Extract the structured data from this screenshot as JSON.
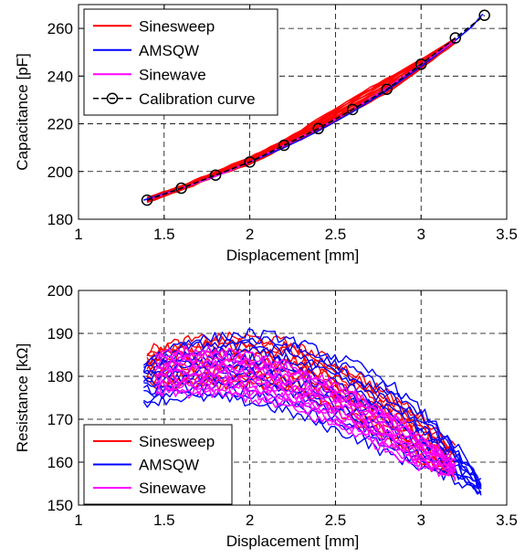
{
  "chart_data": [
    {
      "type": "line",
      "xlabel": "Displacement [mm]",
      "ylabel": "Capacitance [pF]",
      "xlim": [
        1,
        3.5
      ],
      "ylim": [
        180,
        270
      ],
      "xticks": [
        "1",
        "1.5",
        "2",
        "2.5",
        "3",
        "3.5"
      ],
      "yticks": [
        "180",
        "200",
        "220",
        "240",
        "260"
      ],
      "grid": true,
      "legend_position": "top-left",
      "series": [
        {
          "name": "Sinesweep",
          "color": "#ff0000",
          "style": "band",
          "x": [
            1.4,
            1.6,
            1.8,
            2.0,
            2.2,
            2.4,
            2.6,
            2.8,
            3.0,
            3.2
          ],
          "y_low": [
            187,
            192,
            198,
            203,
            210,
            217,
            225,
            233,
            243,
            254
          ],
          "y_high": [
            189,
            194,
            200,
            206,
            213,
            222,
            231,
            239,
            247,
            256
          ]
        },
        {
          "name": "AMSQW",
          "color": "#0000ff",
          "style": "line",
          "x": [
            1.38,
            1.6,
            1.8,
            2.0,
            2.2,
            2.4,
            2.6,
            2.8,
            3.0,
            3.2,
            3.3,
            3.36
          ],
          "y": [
            188,
            193,
            198,
            204,
            210,
            217,
            225,
            234,
            244,
            255,
            261,
            266
          ]
        },
        {
          "name": "Sinewave",
          "color": "#ff00ff",
          "style": "line",
          "x": [
            1.4,
            1.6,
            1.8,
            2.0,
            2.2,
            2.4,
            2.6,
            2.8,
            3.0,
            3.2
          ],
          "y": [
            188,
            193,
            198,
            204,
            211,
            218,
            226,
            235,
            245,
            255
          ]
        },
        {
          "name": "Calibration curve",
          "color": "#000000",
          "style": "dashed-circles",
          "x": [
            1.4,
            1.6,
            1.8,
            2.0,
            2.2,
            2.4,
            2.6,
            2.8,
            3.0,
            3.2,
            3.37
          ],
          "y": [
            188,
            193,
            198.5,
            204,
            211,
            218,
            226,
            234.5,
            245,
            256,
            265.5
          ]
        }
      ]
    },
    {
      "type": "line",
      "xlabel": "Displacement [mm]",
      "ylabel": "Resistance [kΩ]",
      "xlim": [
        1,
        3.5
      ],
      "ylim": [
        150,
        200
      ],
      "xticks": [
        "1",
        "1.5",
        "2",
        "2.5",
        "3",
        "3.5"
      ],
      "yticks": [
        "150",
        "160",
        "170",
        "180",
        "190",
        "200"
      ],
      "grid": true,
      "legend_position": "bottom-left",
      "series": [
        {
          "name": "Sinesweep",
          "color": "#ff0000",
          "style": "band",
          "x": [
            1.4,
            1.6,
            1.8,
            2.0,
            2.2,
            2.4,
            2.6,
            2.8,
            3.0,
            3.2
          ],
          "y_low": [
            178,
            178,
            178,
            178,
            177,
            174,
            170,
            165,
            160,
            156
          ],
          "y_high": [
            186,
            188,
            189,
            189,
            188,
            185,
            181,
            176,
            171,
            163
          ]
        },
        {
          "name": "AMSQW",
          "color": "#0000ff",
          "style": "band",
          "x": [
            1.38,
            1.6,
            1.8,
            2.0,
            2.2,
            2.4,
            2.6,
            2.8,
            3.0,
            3.2,
            3.35
          ],
          "y_low": [
            174,
            175,
            175,
            174,
            172,
            169,
            166,
            162,
            159,
            156,
            153
          ],
          "y_high": [
            183,
            188,
            189,
            190,
            189,
            186,
            183,
            179,
            172,
            164,
            155
          ]
        },
        {
          "name": "Sinewave",
          "color": "#ff00ff",
          "style": "band",
          "x": [
            1.45,
            1.6,
            1.8,
            2.0,
            2.2,
            2.4,
            2.6,
            2.8,
            3.0,
            3.2
          ],
          "y_low": [
            176,
            176,
            176,
            175,
            173,
            170,
            167,
            163,
            159,
            157
          ],
          "y_high": [
            185,
            186,
            186,
            185,
            183,
            180,
            176,
            172,
            166,
            160
          ]
        }
      ]
    }
  ]
}
